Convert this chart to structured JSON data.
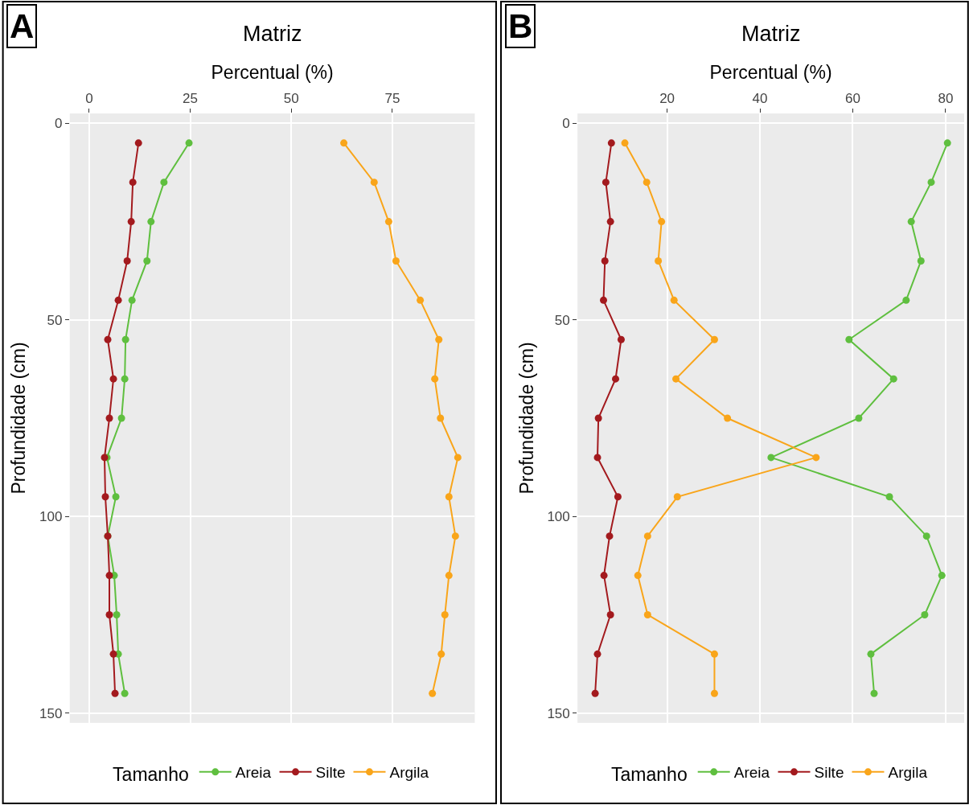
{
  "chart_data": [
    {
      "type": "line",
      "title": "Matriz",
      "xlabel": "Percentual (%)",
      "ylabel": "Profundidade (cm)",
      "legend_title": "Tamanho",
      "orientation": "horizontal",
      "annotations": [
        "A"
      ],
      "x": [
        5,
        15,
        25,
        35,
        45,
        55,
        65,
        75,
        85,
        95,
        105,
        115,
        125,
        135,
        145
      ],
      "series": [
        {
          "name": "Areia",
          "color": "#5fbf3f",
          "values": [
            24.7,
            18.5,
            15.3,
            14.3,
            10.6,
            9.0,
            8.8,
            8.0,
            4.4,
            6.6,
            4.6,
            6.2,
            6.8,
            7.2,
            8.8
          ]
        },
        {
          "name": "Silte",
          "color": "#a31a1e",
          "values": [
            12.2,
            10.8,
            10.4,
            9.4,
            7.2,
            4.6,
            6.0,
            5.0,
            3.8,
            4.0,
            4.6,
            5.0,
            5.0,
            6.0,
            6.4
          ]
        },
        {
          "name": "Argila",
          "color": "#f9a51a",
          "values": [
            63.0,
            70.5,
            74.1,
            75.9,
            81.9,
            86.5,
            85.5,
            86.9,
            91.2,
            89.0,
            90.6,
            89.0,
            88.0,
            87.1,
            84.9
          ]
        }
      ],
      "xlim": [
        -4.8,
        95.4
      ],
      "xticks": [
        0,
        25,
        50,
        75
      ],
      "ylim": [
        152.5,
        -2.5
      ],
      "yticks": [
        0,
        50,
        100,
        150
      ],
      "grid": true,
      "legend": "bottom",
      "marker": "circle"
    },
    {
      "type": "line",
      "title": "Matriz",
      "xlabel": "Percentual (%)",
      "ylabel": "Profundidade (cm)",
      "legend_title": "Tamanho",
      "orientation": "horizontal",
      "annotations": [
        "B"
      ],
      "x": [
        5,
        15,
        25,
        35,
        45,
        55,
        65,
        75,
        85,
        95,
        105,
        115,
        125,
        135,
        145
      ],
      "series": [
        {
          "name": "Areia",
          "color": "#5fbf3f",
          "values": [
            80.4,
            76.9,
            72.6,
            74.7,
            71.5,
            59.2,
            68.8,
            61.3,
            42.4,
            67.9,
            75.9,
            79.2,
            75.5,
            63.9,
            64.6
          ]
        },
        {
          "name": "Silte",
          "color": "#a31a1e",
          "values": [
            8.0,
            6.8,
            7.8,
            6.6,
            6.3,
            10.1,
            8.9,
            5.2,
            5.0,
            9.4,
            7.6,
            6.4,
            7.8,
            5.0,
            4.5
          ]
        },
        {
          "name": "Argila",
          "color": "#f9a51a",
          "values": [
            10.9,
            15.6,
            18.8,
            18.1,
            21.5,
            30.2,
            21.9,
            33.0,
            52.1,
            22.2,
            15.8,
            13.7,
            15.8,
            30.2,
            30.2
          ]
        }
      ],
      "xlim": [
        0.7,
        84
      ],
      "xticks": [
        20,
        40,
        60,
        80
      ],
      "ylim": [
        152.5,
        -2.5
      ],
      "yticks": [
        0,
        50,
        100,
        150
      ],
      "grid": true,
      "legend": "bottom",
      "marker": "circle"
    }
  ]
}
